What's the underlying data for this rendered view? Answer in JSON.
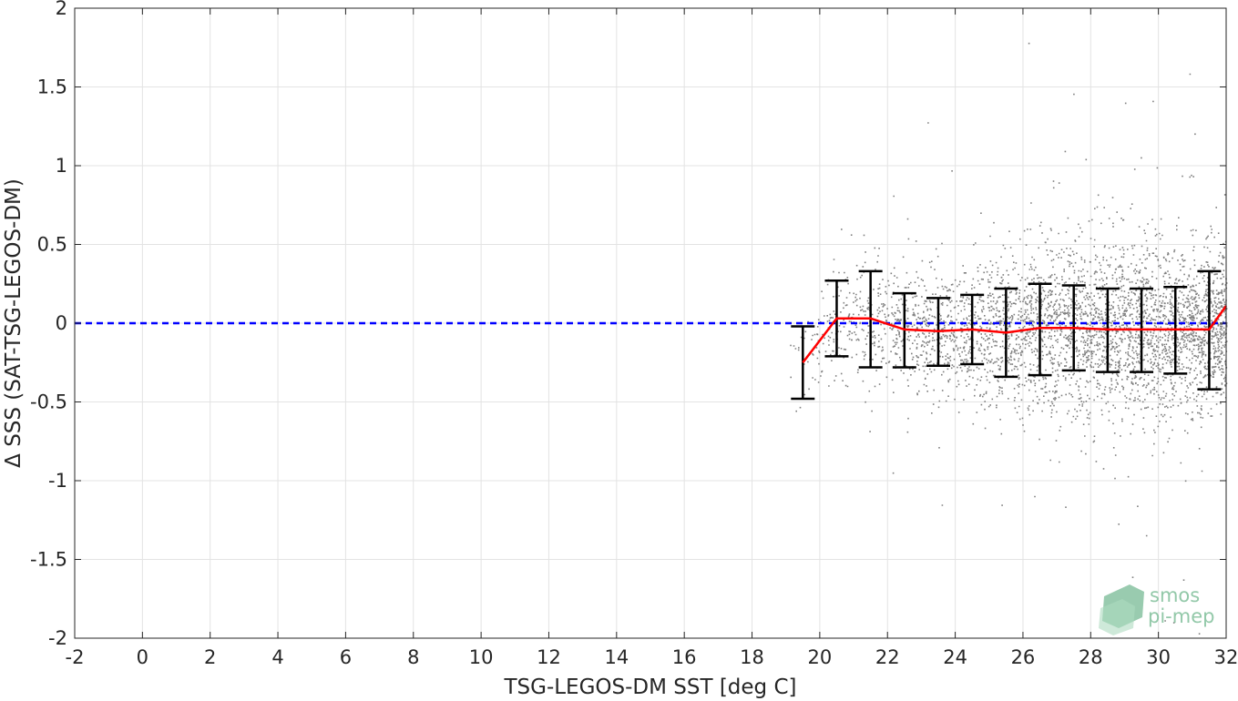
{
  "chart_data": {
    "type": "scatter",
    "title": "",
    "xlabel": "TSG-LEGOS-DM SST [deg C]",
    "ylabel": "Δ SSS (SAT-TSG-LEGOS-DM)",
    "xlim": [
      -2,
      32
    ],
    "ylim": [
      -2,
      2
    ],
    "x_ticks": [
      -2,
      0,
      2,
      4,
      6,
      8,
      10,
      12,
      14,
      16,
      18,
      20,
      22,
      24,
      26,
      28,
      30,
      32
    ],
    "x_tick_labels": [
      "-2",
      "0",
      "2",
      "4",
      "6",
      "8",
      "10",
      "12",
      "14",
      "16",
      "18",
      "20",
      "22",
      "24",
      "26",
      "28",
      "30",
      "32"
    ],
    "y_ticks": [
      -2,
      -1.5,
      -1,
      -0.5,
      0,
      0.5,
      1,
      1.5,
      2
    ],
    "y_tick_labels": [
      "-2",
      "-1.5",
      "-1",
      "-0.5",
      "0",
      "0.5",
      "1",
      "1.5",
      "2"
    ],
    "grid": true,
    "colors": {
      "scatter": "#808080",
      "mean_line": "#ff0000",
      "reference_line": "#0000ff",
      "error_bars": "#000000"
    },
    "reference_line": {
      "y": 0,
      "style": "dashed"
    },
    "binned_stats": {
      "x": [
        19.5,
        20.5,
        21.5,
        22.5,
        23.5,
        24.5,
        25.5,
        26.5,
        27.5,
        28.5,
        29.5,
        30.5,
        31.5,
        32.0
      ],
      "mean": [
        -0.25,
        0.03,
        0.03,
        -0.04,
        -0.05,
        -0.04,
        -0.06,
        -0.03,
        -0.03,
        -0.04,
        -0.04,
        -0.04,
        -0.04,
        0.11
      ],
      "upper": [
        -0.02,
        0.27,
        0.33,
        0.19,
        0.16,
        0.18,
        0.22,
        0.25,
        0.24,
        0.22,
        0.22,
        0.23,
        0.33,
        null
      ],
      "lower": [
        -0.48,
        -0.21,
        -0.28,
        -0.28,
        -0.27,
        -0.26,
        -0.34,
        -0.33,
        -0.3,
        -0.31,
        -0.31,
        -0.32,
        -0.42,
        null
      ]
    },
    "scatter_density": {
      "x_range": [
        19.0,
        32.0
      ],
      "points": [
        {
          "x": 19.5,
          "center": -0.25,
          "spread": 0.25
        },
        {
          "x": 20.5,
          "center": 0.03,
          "spread": 0.28
        },
        {
          "x": 21.5,
          "center": 0.0,
          "spread": 0.32
        },
        {
          "x": 22.5,
          "center": -0.04,
          "spread": 0.3
        },
        {
          "x": 23.5,
          "center": -0.05,
          "spread": 0.32
        },
        {
          "x": 24.5,
          "center": -0.04,
          "spread": 0.34
        },
        {
          "x": 25.5,
          "center": -0.06,
          "spread": 0.38
        },
        {
          "x": 26.5,
          "center": -0.03,
          "spread": 0.42
        },
        {
          "x": 27.5,
          "center": -0.03,
          "spread": 0.45
        },
        {
          "x": 28.5,
          "center": -0.04,
          "spread": 0.45
        },
        {
          "x": 29.5,
          "center": -0.04,
          "spread": 0.45
        },
        {
          "x": 30.5,
          "center": -0.04,
          "spread": 0.42
        },
        {
          "x": 31.5,
          "center": -0.04,
          "spread": 0.38
        }
      ]
    }
  },
  "logo": {
    "line1": "smos",
    "line2": "pi-mep"
  }
}
